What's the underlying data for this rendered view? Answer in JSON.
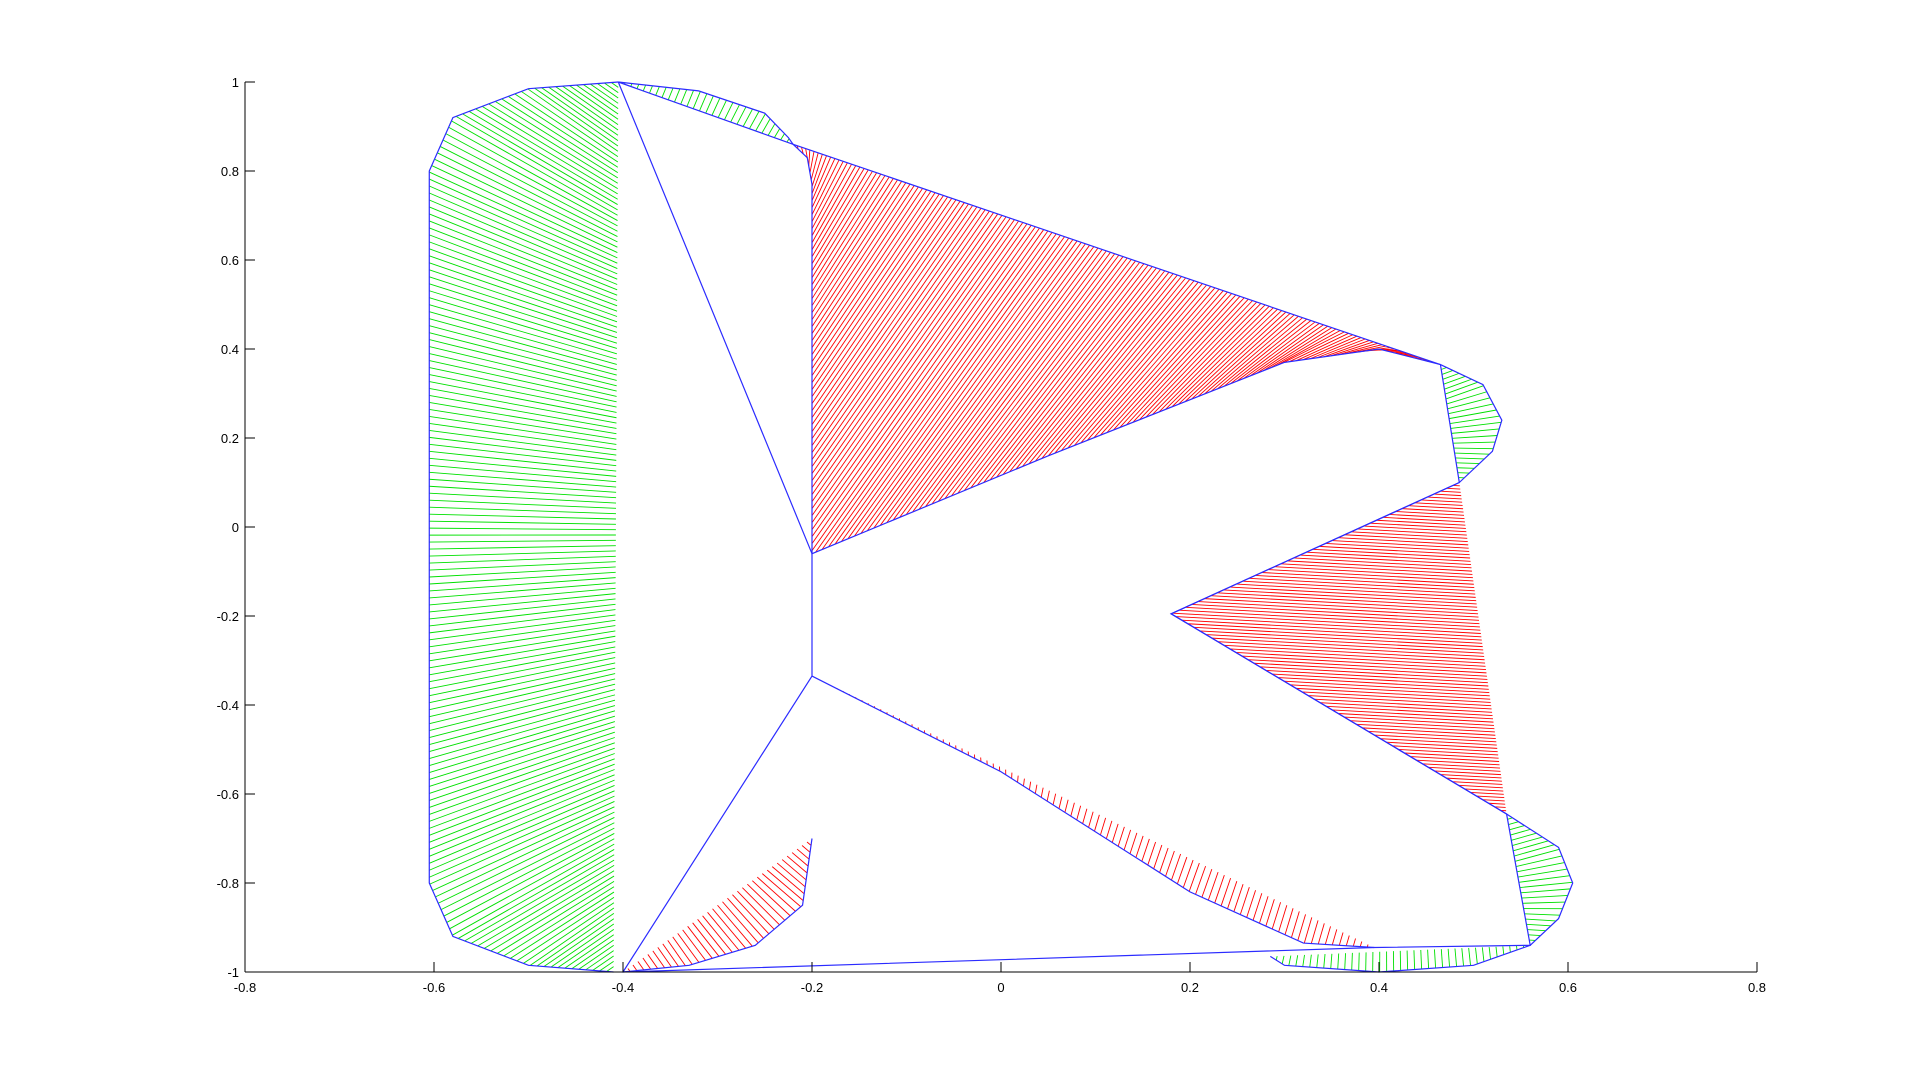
{
  "chart_data": {
    "type": "line",
    "title": "",
    "xlabel": "",
    "ylabel": "",
    "xlim": [
      -0.8,
      0.8
    ],
    "ylim": [
      -1,
      1
    ],
    "grid": false,
    "x_ticks": [
      "-0.8",
      "-0.6",
      "-0.4",
      "-0.2",
      "0",
      "0.2",
      "0.4",
      "0.6",
      "0.8"
    ],
    "y_ticks": [
      "-1",
      "-0.8",
      "-0.6",
      "-0.4",
      "-0.2",
      "0",
      "0.2",
      "0.4",
      "0.6",
      "0.8",
      "1"
    ],
    "colors": {
      "outline": "#2b2bff",
      "convex_fill": "#00e000",
      "concave_fill": "#ff0000"
    },
    "outline_points": [
      [
        -0.405,
        1.0
      ],
      [
        -0.22,
        0.86
      ],
      [
        0.465,
        0.365
      ],
      [
        0.485,
        0.1
      ],
      [
        0.18,
        -0.195
      ],
      [
        0.535,
        -0.645
      ],
      [
        0.56,
        -0.94
      ],
      [
        0.395,
        -0.945
      ],
      [
        -0.4,
        -1.0
      ],
      [
        -0.2,
        -0.335
      ],
      [
        -0.2,
        -0.06
      ],
      [
        -0.405,
        1.0
      ]
    ],
    "convex_regions": [
      {
        "name": "",
        "curve": [
          [
            -0.405,
            1.0
          ],
          [
            -0.5,
            0.985
          ],
          [
            -0.58,
            0.92
          ],
          [
            -0.605,
            0.8
          ],
          [
            -0.605,
            -0.8
          ],
          [
            -0.58,
            -0.92
          ],
          [
            -0.5,
            -0.985
          ],
          [
            -0.41,
            -1.0
          ]
        ],
        "chord": [
          [
            -0.405,
            1.0
          ],
          [
            -0.41,
            -1.0
          ]
        ]
      },
      {
        "name": "",
        "curve": [
          [
            -0.405,
            1.0
          ],
          [
            -0.32,
            0.98
          ],
          [
            -0.25,
            0.93
          ],
          [
            -0.225,
            0.875
          ],
          [
            -0.22,
            0.86
          ]
        ],
        "chord": [
          [
            -0.405,
            1.0
          ],
          [
            -0.22,
            0.86
          ]
        ]
      },
      {
        "name": "",
        "curve": [
          [
            0.465,
            0.365
          ],
          [
            0.51,
            0.32
          ],
          [
            0.53,
            0.24
          ],
          [
            0.52,
            0.17
          ],
          [
            0.485,
            0.1
          ]
        ],
        "chord": [
          [
            0.465,
            0.365
          ],
          [
            0.485,
            0.1
          ]
        ]
      },
      {
        "name": "",
        "curve": [
          [
            0.535,
            -0.645
          ],
          [
            0.59,
            -0.72
          ],
          [
            0.605,
            -0.8
          ],
          [
            0.59,
            -0.88
          ],
          [
            0.56,
            -0.94
          ]
        ],
        "chord": [
          [
            0.535,
            -0.645
          ],
          [
            0.56,
            -0.94
          ]
        ]
      },
      {
        "name": "",
        "curve": [
          [
            0.56,
            -0.94
          ],
          [
            0.5,
            -0.985
          ],
          [
            0.4,
            -1.0
          ],
          [
            0.3,
            -0.985
          ],
          [
            0.285,
            -0.965
          ]
        ],
        "chord": [
          [
            0.56,
            -0.94
          ],
          [
            0.285,
            -0.965
          ]
        ]
      }
    ],
    "concave_regions": [
      {
        "name": "",
        "curve": [
          [
            -0.22,
            0.86
          ],
          [
            -0.205,
            0.83
          ],
          [
            -0.2,
            0.77
          ],
          [
            -0.2,
            0.7
          ],
          [
            -0.2,
            -0.06
          ],
          [
            0.05,
            0.16
          ],
          [
            0.3,
            0.37
          ],
          [
            0.4,
            0.4
          ],
          [
            0.465,
            0.365
          ]
        ],
        "chord": [
          [
            -0.22,
            0.86
          ],
          [
            0.465,
            0.365
          ]
        ]
      },
      {
        "name": "",
        "curve": [
          [
            0.485,
            0.1
          ],
          [
            0.18,
            -0.195
          ],
          [
            0.535,
            -0.645
          ]
        ],
        "chord": [
          [
            0.485,
            0.1
          ],
          [
            0.535,
            -0.645
          ]
        ]
      },
      {
        "name": "",
        "curve": [
          [
            -0.2,
            -0.335
          ],
          [
            0.0,
            -0.55
          ],
          [
            0.2,
            -0.82
          ],
          [
            0.32,
            -0.935
          ],
          [
            0.395,
            -0.945
          ]
        ],
        "chord": [
          [
            -0.2,
            -0.335
          ],
          [
            0.395,
            -0.945
          ]
        ]
      },
      {
        "name": "",
        "curve": [
          [
            -0.2,
            -0.7
          ],
          [
            -0.21,
            -0.85
          ],
          [
            -0.26,
            -0.94
          ],
          [
            -0.33,
            -0.985
          ],
          [
            -0.4,
            -1.0
          ]
        ],
        "chord": [
          [
            -0.2,
            -0.7
          ],
          [
            -0.4,
            -1.0
          ]
        ]
      }
    ]
  }
}
